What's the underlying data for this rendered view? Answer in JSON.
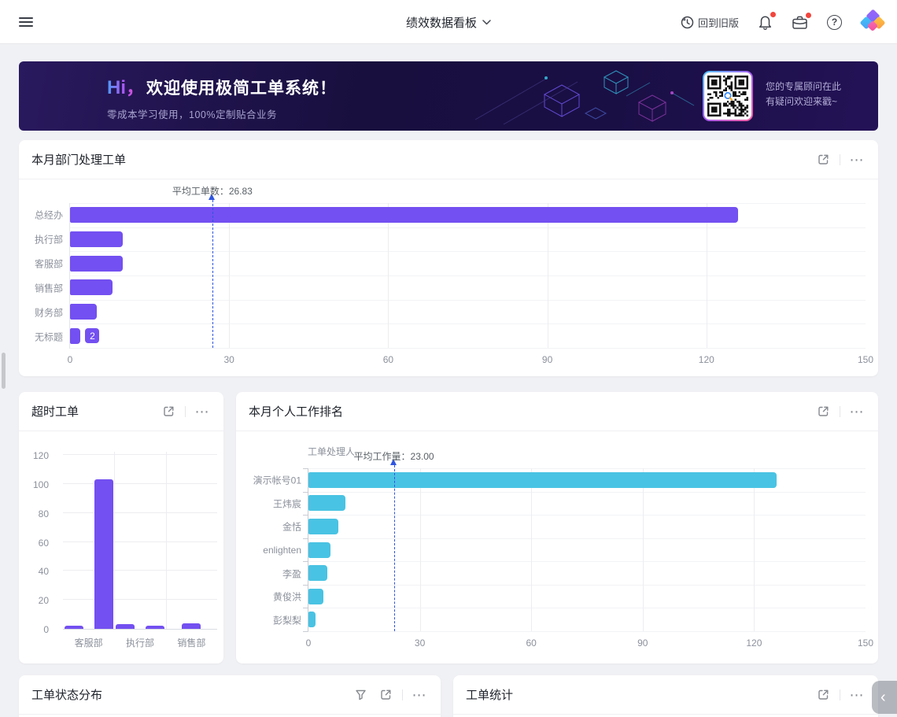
{
  "navbar": {
    "title": "绩效数据看板",
    "back_label": "回到旧版"
  },
  "banner": {
    "greeting": "Hi，",
    "headline": "欢迎使用极简工单系统！",
    "subline": "零成本学习使用，100%定制贴合业务",
    "qr_line1": "您的专属顾问在此",
    "qr_line2": "有疑问欢迎来戳~"
  },
  "cards": {
    "status_title": "工单状态分布",
    "stats_title": "工单统计"
  },
  "icons": {
    "help_glyph": "?",
    "more_glyph": "⋯",
    "collapse_glyph": "‹"
  },
  "theme": {
    "purple_bar": "#7350f1",
    "cyan_bar": "#49c3e3",
    "average_line_blue": "#2f55e0",
    "notification_red": "#f2453d"
  },
  "chart_data": [
    {
      "id": "dept",
      "type": "bar",
      "orientation": "horizontal",
      "title": "本月部门处理工单",
      "categories": [
        "总经办",
        "执行部",
        "客服部",
        "销售部",
        "财务部",
        "无标题"
      ],
      "values": [
        126,
        10,
        10,
        8,
        5,
        2
      ],
      "badge": {
        "index": 5,
        "text": "2"
      },
      "average": 26.83,
      "average_label": "平均工单数：26.83",
      "xlim": [
        0,
        150
      ],
      "xticks": [
        0,
        30,
        60,
        90,
        120,
        150
      ],
      "grid": true,
      "bar_color": "#7350f1"
    },
    {
      "id": "overtime",
      "type": "bar",
      "orientation": "vertical",
      "title": "超时工单",
      "groups": [
        {
          "label": "客服部",
          "values": [
            2,
            103
          ]
        },
        {
          "label": "执行部",
          "values": [
            3,
            2
          ]
        },
        {
          "label": "销售部",
          "values": [
            4
          ]
        }
      ],
      "ylim": [
        0,
        120
      ],
      "yticks": [
        0,
        20,
        40,
        60,
        80,
        100,
        120
      ],
      "grid": true,
      "bar_color": "#7350f1"
    },
    {
      "id": "ranking",
      "type": "bar",
      "orientation": "horizontal",
      "title": "本月个人工作排名",
      "axis_title": "工单处理人",
      "categories": [
        "演示帐号01",
        "王炜宸",
        "金恬",
        "enlighten",
        "李盈",
        "黄俊洪",
        "彭梨梨"
      ],
      "values": [
        126,
        10,
        8,
        6,
        5,
        4,
        2
      ],
      "average": 23.0,
      "average_label": "平均工作量：23.00",
      "xlim": [
        0,
        150
      ],
      "xticks": [
        0,
        30,
        60,
        90,
        120,
        150
      ],
      "grid": true,
      "bar_color": "#49c3e3"
    }
  ]
}
